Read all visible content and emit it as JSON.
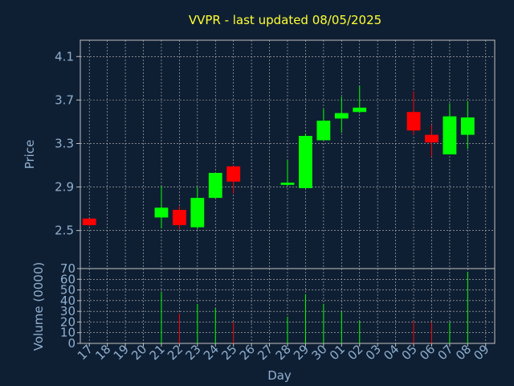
{
  "chart_data": {
    "type": "candlestick",
    "title": "VVPR - last updated 08/05/2025",
    "xlabel": "Day",
    "price_panel": {
      "ylabel": "Price",
      "ylim": [
        2.15,
        4.25
      ],
      "yticks": [
        "4.1",
        "3.7",
        "3.3",
        "2.9",
        "2.5"
      ],
      "ytick_values": [
        4.1,
        3.7,
        3.3,
        2.9,
        2.5
      ],
      "grid": true
    },
    "volume_panel": {
      "ylabel": "Volume (0000)",
      "ylim": [
        0,
        70
      ],
      "yticks": [
        "70",
        "60",
        "50",
        "40",
        "30",
        "20",
        "10",
        "0"
      ],
      "ytick_values": [
        70,
        60,
        50,
        40,
        30,
        20,
        10,
        0
      ],
      "grid": true
    },
    "x_ticks": [
      "17",
      "18",
      "19",
      "20",
      "21",
      "22",
      "23",
      "24",
      "25",
      "26",
      "27",
      "28",
      "29",
      "30",
      "01",
      "02",
      "03",
      "04",
      "05",
      "06",
      "07",
      "08",
      "09"
    ],
    "colors": {
      "up": "#00ff00",
      "down": "#ff0000",
      "background": "#0f1f33",
      "plot_frame": "#c0c0c0",
      "grid": "#c0c0c0",
      "text": "#8fb0d0",
      "title": "#ffff33"
    },
    "candles": [
      {
        "day": "17",
        "open": 2.61,
        "high": 2.61,
        "low": 2.54,
        "close": 2.55,
        "volume": 0
      },
      {
        "day": "21",
        "open": 2.62,
        "high": 2.91,
        "low": 2.52,
        "close": 2.71,
        "volume": 48
      },
      {
        "day": "22",
        "open": 2.69,
        "high": 2.72,
        "low": 2.51,
        "close": 2.55,
        "volume": 28
      },
      {
        "day": "23",
        "open": 2.53,
        "high": 2.9,
        "low": 2.51,
        "close": 2.8,
        "volume": 37
      },
      {
        "day": "24",
        "open": 2.8,
        "high": 3.03,
        "low": 2.8,
        "close": 3.03,
        "volume": 33
      },
      {
        "day": "25",
        "open": 3.09,
        "high": 3.1,
        "low": 2.84,
        "close": 2.95,
        "volume": 20
      },
      {
        "day": "28",
        "open": 2.92,
        "high": 3.15,
        "low": 2.91,
        "close": 2.94,
        "volume": 25
      },
      {
        "day": "29",
        "open": 2.89,
        "high": 3.39,
        "low": 2.89,
        "close": 3.37,
        "volume": 46
      },
      {
        "day": "30",
        "open": 3.33,
        "high": 3.62,
        "low": 3.33,
        "close": 3.51,
        "volume": 37
      },
      {
        "day": "01",
        "open": 3.53,
        "high": 3.73,
        "low": 3.4,
        "close": 3.58,
        "volume": 30
      },
      {
        "day": "02",
        "open": 3.59,
        "high": 3.83,
        "low": 3.58,
        "close": 3.63,
        "volume": 21
      },
      {
        "day": "05",
        "open": 3.59,
        "high": 3.78,
        "low": 3.38,
        "close": 3.42,
        "volume": 21
      },
      {
        "day": "06",
        "open": 3.38,
        "high": 3.47,
        "low": 3.18,
        "close": 3.31,
        "volume": 20
      },
      {
        "day": "07",
        "open": 3.2,
        "high": 3.67,
        "low": 3.2,
        "close": 3.55,
        "volume": 20
      },
      {
        "day": "08",
        "open": 3.38,
        "high": 3.69,
        "low": 3.25,
        "close": 3.54,
        "volume": 67
      }
    ]
  }
}
